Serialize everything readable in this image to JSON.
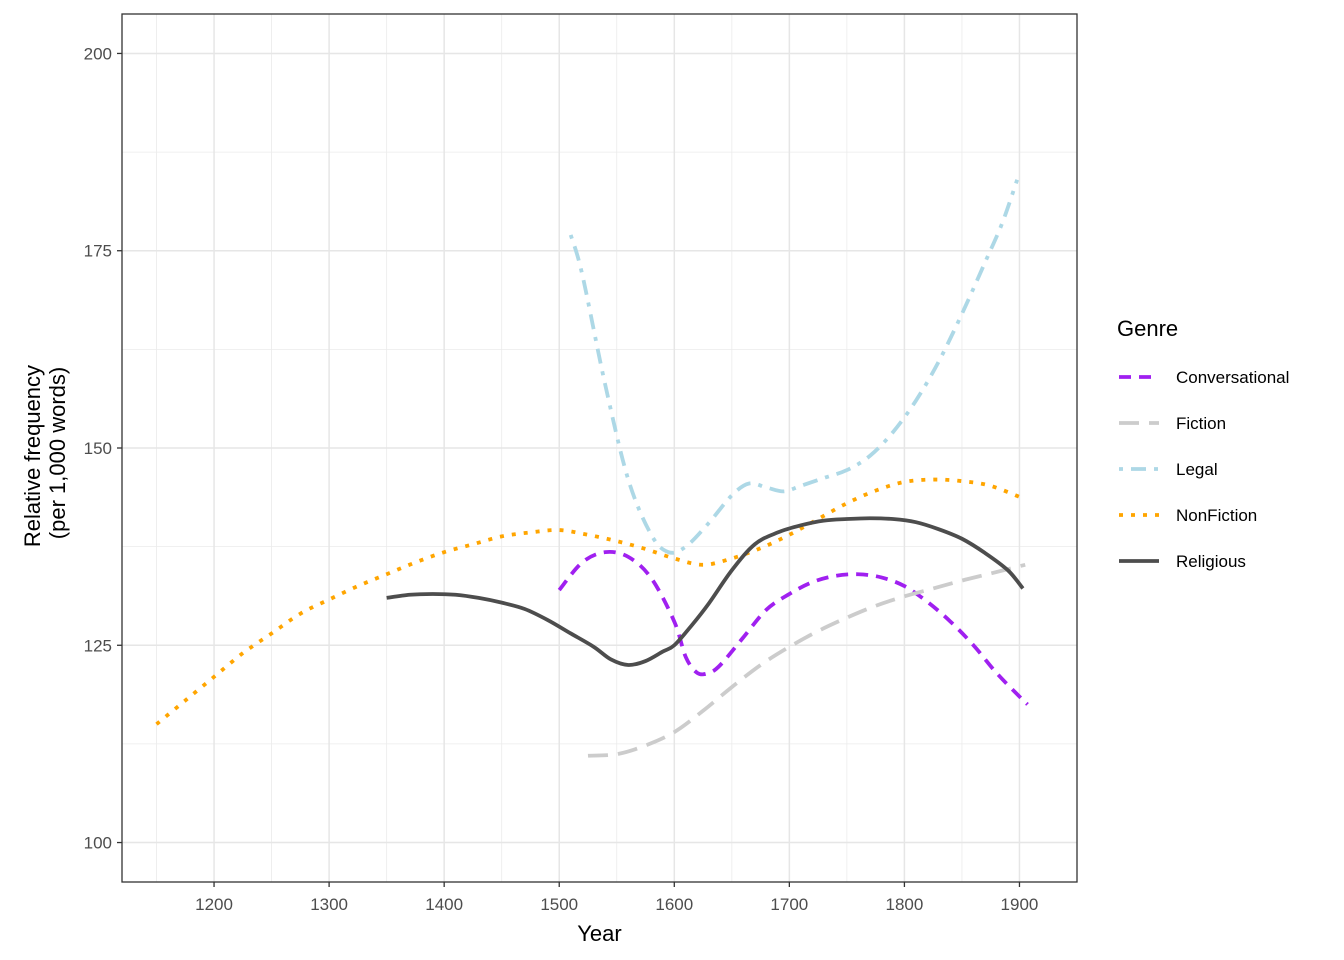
{
  "chart_data": {
    "type": "line",
    "xlabel": "Year",
    "ylabel": [
      "Relative frequency",
      "(per 1,000 words)"
    ],
    "xlim": [
      1120,
      1950
    ],
    "ylim": [
      95,
      205
    ],
    "x_ticks": [
      1200,
      1300,
      1400,
      1500,
      1600,
      1700,
      1800,
      1900
    ],
    "y_ticks": [
      100,
      125,
      150,
      175,
      200
    ],
    "grid": true,
    "legend": {
      "title": "Genre",
      "position": "right"
    },
    "series": [
      {
        "name": "Conversational",
        "color": "#a020f0",
        "dash": "dashed",
        "x": [
          1500,
          1520,
          1540,
          1560,
          1580,
          1600,
          1610,
          1620,
          1630,
          1640,
          1660,
          1680,
          1700,
          1720,
          1740,
          1760,
          1780,
          1800,
          1820,
          1840,
          1860,
          1880,
          1900,
          1907
        ],
        "y": [
          132,
          135.5,
          136.8,
          136.2,
          133.5,
          128,
          123.5,
          121.5,
          121.5,
          122.5,
          126,
          129.5,
          131.5,
          133,
          133.8,
          134,
          133.6,
          132.5,
          130.5,
          128,
          125,
          121.5,
          118.5,
          117.5
        ]
      },
      {
        "name": "Fiction",
        "color": "#cccccc",
        "dash": "longdash",
        "x": [
          1525,
          1550,
          1575,
          1600,
          1625,
          1650,
          1675,
          1700,
          1725,
          1750,
          1775,
          1800,
          1825,
          1850,
          1875,
          1905
        ],
        "y": [
          111,
          111.2,
          112.3,
          114,
          116.7,
          119.7,
          122.5,
          124.8,
          126.8,
          128.5,
          130,
          131.2,
          132.2,
          133.2,
          134.1,
          135.2
        ]
      },
      {
        "name": "Legal",
        "color": "#add8e6",
        "dash": "dotdash",
        "x": [
          1510,
          1520,
          1540,
          1560,
          1580,
          1595,
          1610,
          1630,
          1650,
          1665,
          1680,
          1695,
          1710,
          1730,
          1750,
          1770,
          1790,
          1810,
          1830,
          1850,
          1870,
          1885,
          1898
        ],
        "y": [
          177,
          172,
          158,
          146,
          139,
          136.8,
          137.5,
          140.5,
          144,
          145.5,
          145,
          144.5,
          145.2,
          146.2,
          147.2,
          149,
          152,
          156,
          161,
          167,
          173.5,
          178.5,
          184
        ]
      },
      {
        "name": "NonFiction",
        "color": "#ffa500",
        "dash": "dotted",
        "x": [
          1150,
          1175,
          1200,
          1225,
          1250,
          1275,
          1300,
          1325,
          1350,
          1375,
          1400,
          1425,
          1450,
          1475,
          1500,
          1525,
          1550,
          1575,
          1600,
          1625,
          1650,
          1675,
          1700,
          1725,
          1750,
          1775,
          1800,
          1825,
          1850,
          1875,
          1905
        ],
        "y": [
          115,
          118,
          121,
          124,
          126.5,
          129,
          130.8,
          132.5,
          134,
          135.5,
          136.8,
          137.8,
          138.8,
          139.3,
          139.6,
          139,
          138.2,
          137.2,
          136,
          135.2,
          136,
          137.3,
          139,
          141,
          143,
          144.6,
          145.7,
          146,
          145.8,
          145.2,
          143.5
        ]
      },
      {
        "name": "Religious",
        "color": "#4d4d4d",
        "dash": "solid",
        "x": [
          1350,
          1370,
          1390,
          1410,
          1430,
          1450,
          1470,
          1490,
          1510,
          1530,
          1545,
          1560,
          1575,
          1590,
          1600,
          1615,
          1630,
          1650,
          1670,
          1690,
          1710,
          1730,
          1750,
          1770,
          1790,
          1810,
          1830,
          1850,
          1870,
          1890,
          1903
        ],
        "y": [
          131,
          131.4,
          131.5,
          131.4,
          131,
          130.4,
          129.6,
          128.2,
          126.5,
          124.8,
          123.2,
          122.5,
          123,
          124.2,
          125,
          127.5,
          130.3,
          134.5,
          137.8,
          139.3,
          140.2,
          140.8,
          141,
          141.1,
          141,
          140.6,
          139.7,
          138.5,
          136.7,
          134.5,
          132.2
        ]
      }
    ]
  }
}
